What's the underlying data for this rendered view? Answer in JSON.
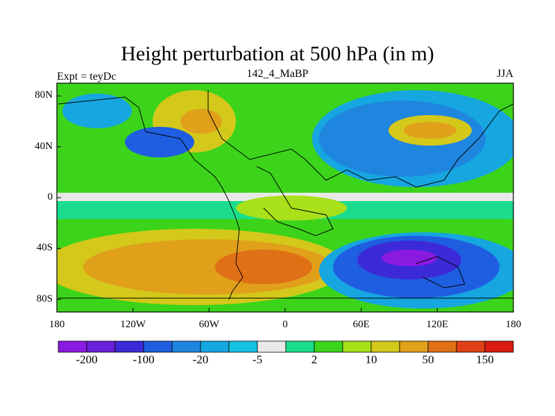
{
  "title": "Height perturbation at 500 hPa (in m)",
  "left_label": "Expt = teyDc",
  "center_label": "142_4_MaBP",
  "right_label": "JJA",
  "axes": {
    "lat_ticks": [
      {
        "label": "80N",
        "value": 80
      },
      {
        "label": "40N",
        "value": 40
      },
      {
        "label": "0",
        "value": 0
      },
      {
        "label": "40S",
        "value": -40
      },
      {
        "label": "80S",
        "value": -80
      }
    ],
    "lon_ticks": [
      {
        "label": "180",
        "value": -180
      },
      {
        "label": "120W",
        "value": -120
      },
      {
        "label": "60W",
        "value": -60
      },
      {
        "label": "0",
        "value": 0
      },
      {
        "label": "60E",
        "value": 60
      },
      {
        "label": "120E",
        "value": 120
      },
      {
        "label": "180",
        "value": 180
      }
    ]
  },
  "colorbar": {
    "colors": [
      "#8b1ae0",
      "#6a1fd8",
      "#3c2ad8",
      "#1f5ee0",
      "#1f86e0",
      "#16a6e0",
      "#16c2e4",
      "#e8e8e8",
      "#1adc8c",
      "#3cd41a",
      "#a8e01a",
      "#d4c81a",
      "#e0a01a",
      "#e07016",
      "#e04016",
      "#d81a10"
    ],
    "labels": [
      "-200",
      "-100",
      "-20",
      "-5",
      "2",
      "10",
      "50",
      "150"
    ]
  },
  "colors": {
    "ocean_base": "#38c428",
    "land_outline": "#000000"
  }
}
